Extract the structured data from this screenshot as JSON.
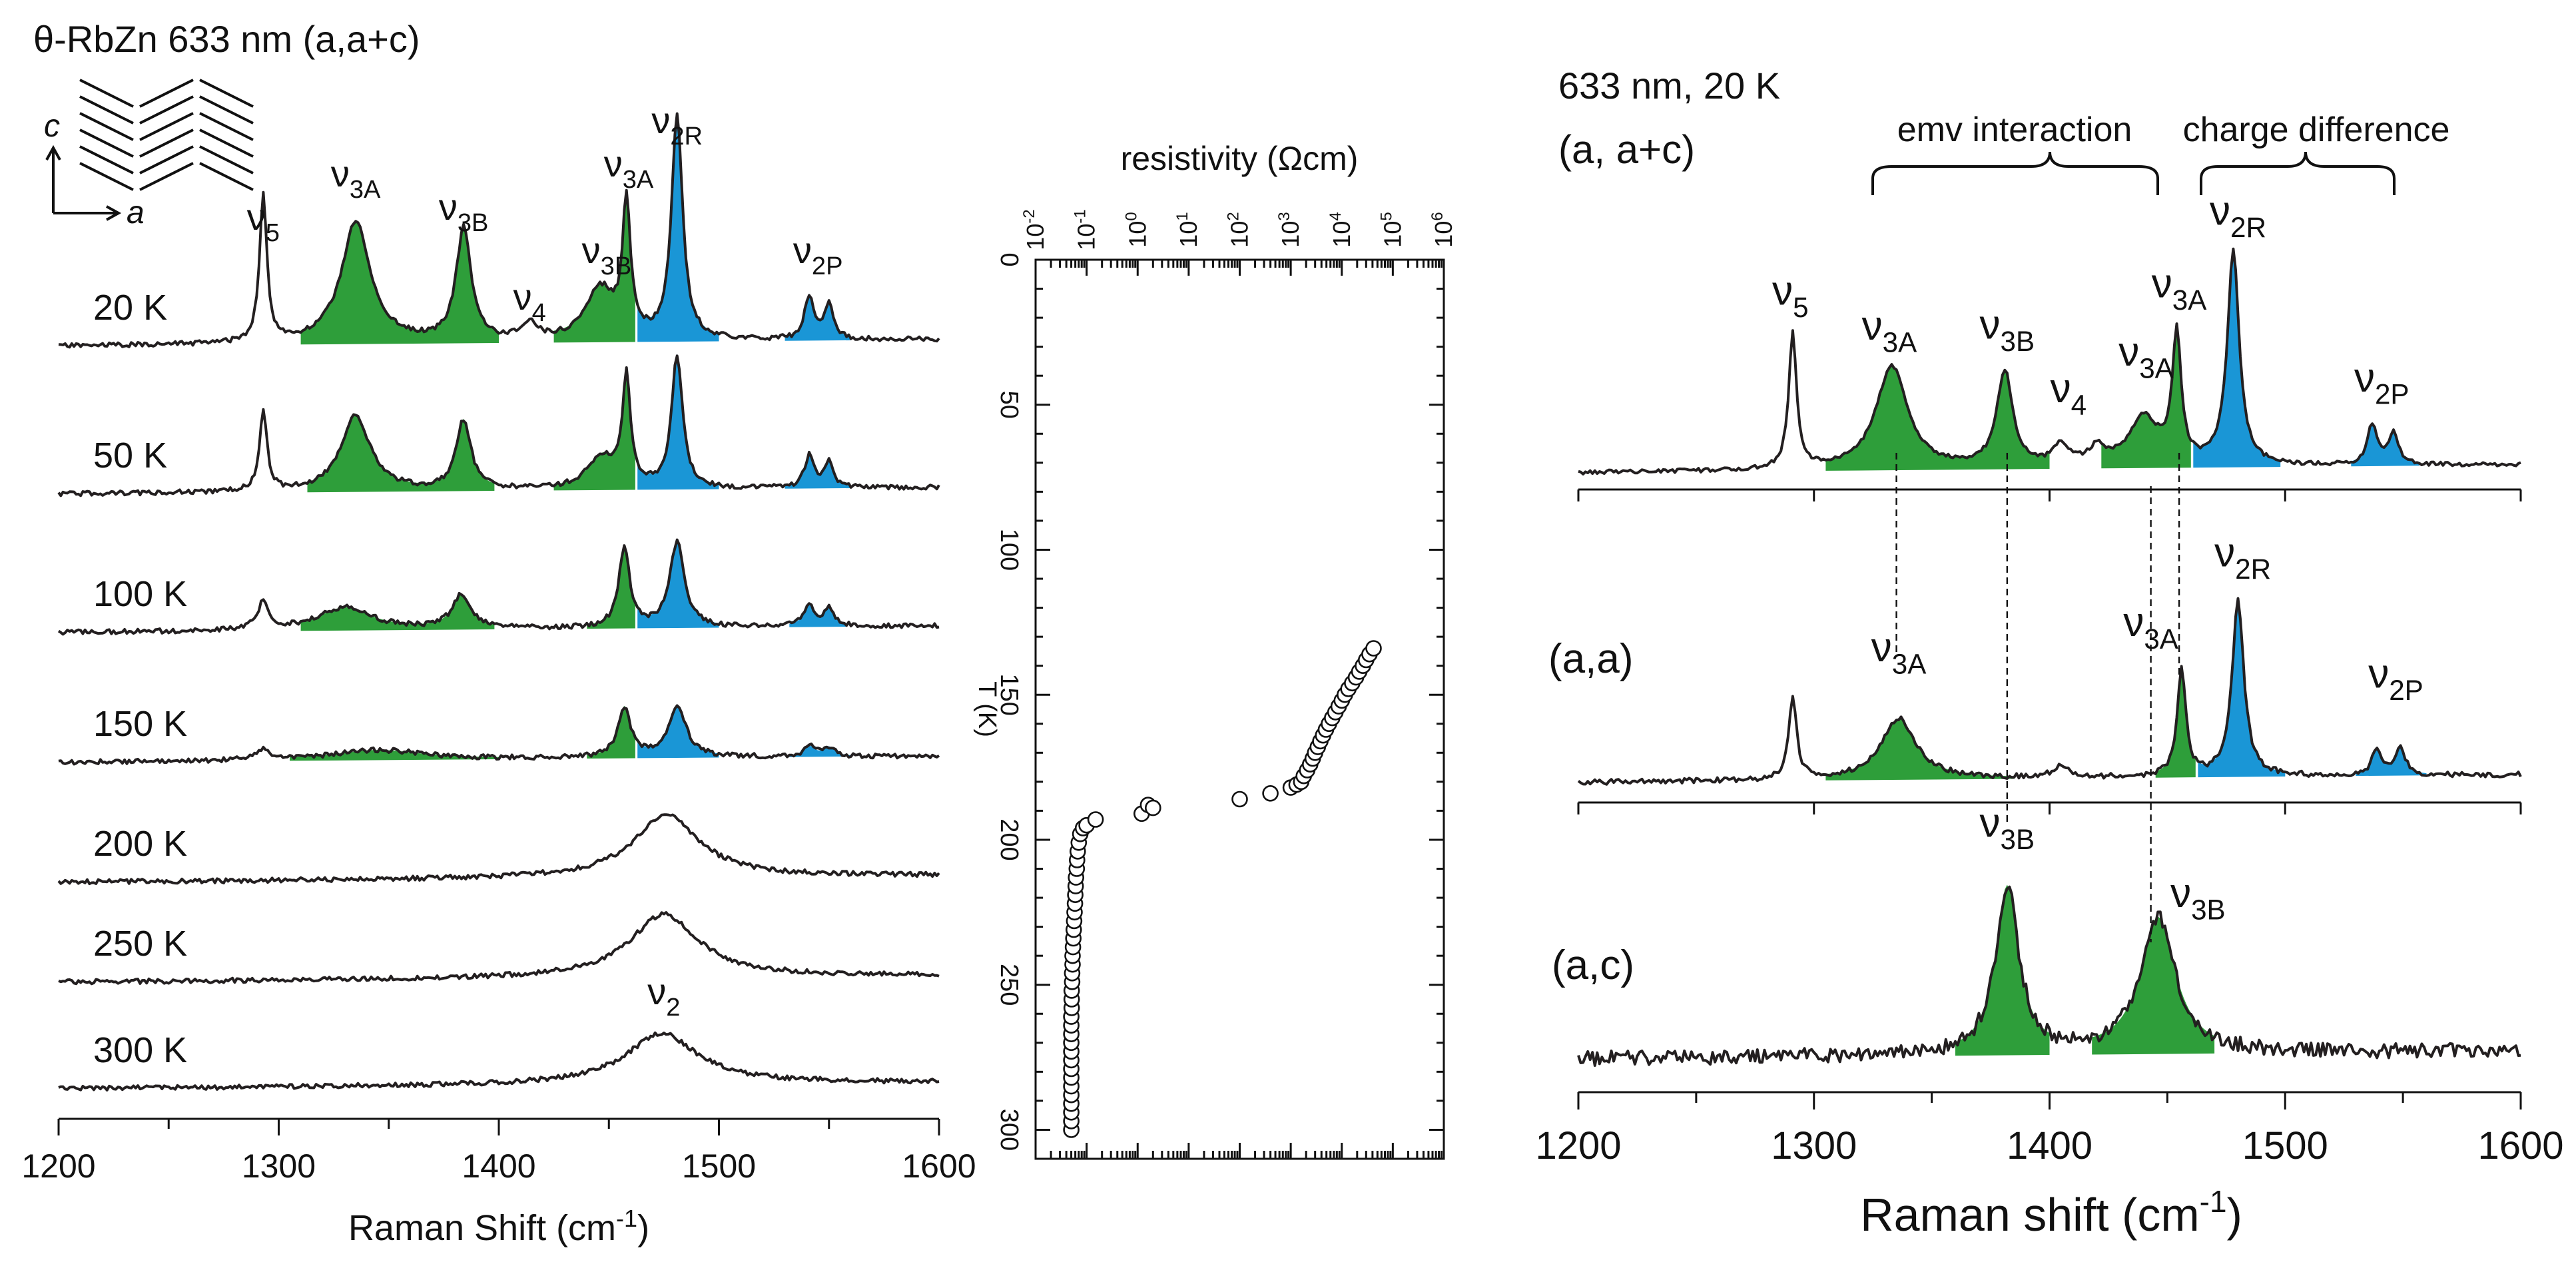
{
  "colors": {
    "green": "#2e9e3a",
    "blue": "#1a96d6",
    "line": "#231f20",
    "marker_fill": "#ffffff"
  },
  "chart_data": [
    {
      "type": "line",
      "title": "θ-RbZn 633 nm (a,a+c)",
      "xlabel": "Raman Shift (cm-1)",
      "ylabel": "",
      "xlim": [
        1200,
        1600
      ],
      "xticks": [
        "1200",
        "1300",
        "1400",
        "1500",
        "1600"
      ],
      "crystal_axes": [
        "c",
        "a"
      ],
      "peak_labels": [
        {
          "base": "ν",
          "sub": "5",
          "x": 1293,
          "y": 20
        },
        {
          "base": "ν",
          "sub": "3A",
          "x": 1335,
          "y": 20
        },
        {
          "base": "ν",
          "sub": "3B",
          "x": 1384,
          "y": 20
        },
        {
          "base": "ν",
          "sub": "4",
          "x": 1414,
          "y": 20
        },
        {
          "base": "ν",
          "sub": "3B",
          "x": 1449,
          "y": 20
        },
        {
          "base": "ν",
          "sub": "3A",
          "x": 1459,
          "y": 20
        },
        {
          "base": "ν",
          "sub": "2R",
          "x": 1481,
          "y": 20
        },
        {
          "base": "ν",
          "sub": "2P",
          "x": 1545,
          "y": 20
        },
        {
          "base": "ν",
          "sub": "2",
          "x": 1475,
          "y": 300
        }
      ],
      "series": [
        {
          "name": "20 K",
          "peaks": [
            [
              1293,
              1.7,
              2
            ],
            [
              1335,
              1.4,
              8
            ],
            [
              1384,
              1.3,
              4
            ],
            [
              1414,
              0.2,
              4
            ],
            [
              1446,
              0.6,
              8
            ],
            [
              1458,
              1.5,
              2.2
            ],
            [
              1481,
              2.6,
              3
            ],
            [
              1541,
              0.5,
              2.5
            ],
            [
              1550,
              0.4,
              2.5
            ]
          ],
          "fills": [
            {
              "color": "green",
              "from": 1310,
              "to": 1400
            },
            {
              "color": "green",
              "from": 1425,
              "to": 1462
            },
            {
              "color": "blue",
              "from": 1463,
              "to": 1500
            },
            {
              "color": "blue",
              "from": 1530,
              "to": 1560
            }
          ]
        },
        {
          "name": "50 K",
          "peaks": [
            [
              1293,
              1.3,
              2
            ],
            [
              1335,
              1.2,
              8
            ],
            [
              1384,
              1.1,
              4
            ],
            [
              1447,
              0.5,
              8
            ],
            [
              1458,
              1.7,
              2.2
            ],
            [
              1481,
              2.1,
              3
            ],
            [
              1541,
              0.5,
              2.5
            ],
            [
              1550,
              0.4,
              2.5
            ]
          ],
          "fills": [
            {
              "color": "green",
              "from": 1313,
              "to": 1398
            },
            {
              "color": "green",
              "from": 1425,
              "to": 1462
            },
            {
              "color": "blue",
              "from": 1463,
              "to": 1500
            },
            {
              "color": "blue",
              "from": 1530,
              "to": 1560
            }
          ]
        },
        {
          "name": "100 K",
          "peaks": [
            [
              1293,
              0.5,
              3
            ],
            [
              1330,
              0.4,
              15
            ],
            [
              1383,
              0.6,
              5
            ],
            [
              1457,
              1.4,
              3
            ],
            [
              1481,
              1.5,
              4
            ],
            [
              1541,
              0.35,
              3
            ],
            [
              1550,
              0.3,
              3
            ]
          ],
          "fills": [
            {
              "color": "green",
              "from": 1310,
              "to": 1398
            },
            {
              "color": "green",
              "from": 1440,
              "to": 1462
            },
            {
              "color": "blue",
              "from": 1463,
              "to": 1500
            },
            {
              "color": "blue",
              "from": 1532,
              "to": 1558
            }
          ]
        },
        {
          "name": "150 K",
          "peaks": [
            [
              1293,
              0.2,
              4
            ],
            [
              1345,
              0.2,
              25
            ],
            [
              1457,
              1.0,
              3.5
            ],
            [
              1481,
              1.0,
              5
            ],
            [
              1541,
              0.2,
              3
            ],
            [
              1550,
              0.18,
              3
            ]
          ],
          "fills": [
            {
              "color": "green",
              "from": 1305,
              "to": 1400
            },
            {
              "color": "green",
              "from": 1440,
              "to": 1462
            },
            {
              "color": "blue",
              "from": 1463,
              "to": 1500
            },
            {
              "color": "blue",
              "from": 1532,
              "to": 1560
            }
          ]
        },
        {
          "name": "200 K",
          "peaks": [
            [
              1476,
              1.0,
              18
            ]
          ],
          "fills": []
        },
        {
          "name": "250 K",
          "peaks": [
            [
              1475,
              1.0,
              19
            ]
          ],
          "fills": []
        },
        {
          "name": "300 K",
          "peaks": [
            [
              1474,
              0.8,
              20
            ]
          ],
          "fills": []
        }
      ]
    },
    {
      "type": "scatter",
      "title": "",
      "xlabel": "resistivity (Ωcm)",
      "ylabel": "T (K)",
      "x_scale": "log",
      "xlim": [
        0.01,
        1000000
      ],
      "ylim": [
        0,
        310
      ],
      "y_inverted": true,
      "yticks": [
        "0",
        "50",
        "100",
        "150",
        "200",
        "250",
        "300"
      ],
      "xticks": [
        {
          "base": "10",
          "exp": "-2"
        },
        {
          "base": "10",
          "exp": "-1"
        },
        {
          "base": "10",
          "exp": "0"
        },
        {
          "base": "10",
          "exp": "1"
        },
        {
          "base": "10",
          "exp": "2"
        },
        {
          "base": "10",
          "exp": "3"
        },
        {
          "base": "10",
          "exp": "4"
        },
        {
          "base": "10",
          "exp": "5"
        },
        {
          "base": "10",
          "exp": "6"
        }
      ],
      "points": [
        [
          0.05,
          300
        ],
        [
          0.05,
          297
        ],
        [
          0.05,
          294
        ],
        [
          0.05,
          291
        ],
        [
          0.05,
          288
        ],
        [
          0.05,
          285
        ],
        [
          0.05,
          282
        ],
        [
          0.05,
          279
        ],
        [
          0.05,
          276
        ],
        [
          0.05,
          273
        ],
        [
          0.05,
          270
        ],
        [
          0.05,
          267
        ],
        [
          0.05,
          264
        ],
        [
          0.05,
          261
        ],
        [
          0.051,
          258
        ],
        [
          0.051,
          255
        ],
        [
          0.051,
          252
        ],
        [
          0.052,
          249
        ],
        [
          0.052,
          246
        ],
        [
          0.053,
          243
        ],
        [
          0.053,
          240
        ],
        [
          0.054,
          237
        ],
        [
          0.055,
          234
        ],
        [
          0.056,
          231
        ],
        [
          0.057,
          228
        ],
        [
          0.058,
          225
        ],
        [
          0.059,
          222
        ],
        [
          0.06,
          219
        ],
        [
          0.061,
          216
        ],
        [
          0.062,
          213
        ],
        [
          0.064,
          210
        ],
        [
          0.065,
          207
        ],
        [
          0.067,
          204
        ],
        [
          0.07,
          201
        ],
        [
          0.075,
          198
        ],
        [
          0.085,
          196
        ],
        [
          0.1,
          195
        ],
        [
          0.15,
          193
        ],
        [
          1.2,
          191
        ],
        [
          1.6,
          188
        ],
        [
          2,
          189
        ],
        [
          100,
          186
        ],
        [
          400,
          184
        ],
        [
          1000,
          182
        ],
        [
          1300,
          181
        ],
        [
          1600,
          180
        ],
        [
          1800,
          178
        ],
        [
          2100,
          176
        ],
        [
          2400,
          174
        ],
        [
          2700,
          172
        ],
        [
          3000,
          170
        ],
        [
          3400,
          168
        ],
        [
          3800,
          166
        ],
        [
          4300,
          164
        ],
        [
          4900,
          162
        ],
        [
          5600,
          160
        ],
        [
          6500,
          158
        ],
        [
          7500,
          156
        ],
        [
          8700,
          154
        ],
        [
          10000,
          152
        ],
        [
          11500,
          150
        ],
        [
          13500,
          148
        ],
        [
          16000,
          146
        ],
        [
          19000,
          144
        ],
        [
          22000,
          142
        ],
        [
          26000,
          140
        ],
        [
          30000,
          138
        ],
        [
          35000,
          136
        ],
        [
          42000,
          134
        ]
      ]
    },
    {
      "type": "line",
      "title": "633 nm, 20 K",
      "xlabel": "Raman shift (cm-1)",
      "ylabel": "",
      "xlim": [
        1200,
        1600
      ],
      "xticks": [
        "1200",
        "1300",
        "1400",
        "1500",
        "1600"
      ],
      "group_labels": [
        "emv interaction",
        "charge difference"
      ],
      "dashed_lines_x": [
        1335,
        1382,
        1443,
        1455
      ],
      "panels": [
        {
          "name": "(a, a+c)",
          "peaks": [
            [
              1291,
              1.7,
              2
            ],
            [
              1333,
              1.3,
              8
            ],
            [
              1381,
              1.2,
              4
            ],
            [
              1405,
              0.25,
              4
            ],
            [
              1420,
              0.2,
              4
            ],
            [
              1440,
              0.6,
              8
            ],
            [
              1454,
              1.6,
              2.2
            ],
            [
              1478,
              2.7,
              3
            ],
            [
              1537,
              0.5,
              2.5
            ],
            [
              1546,
              0.4,
              2.5
            ]
          ],
          "fills": [
            {
              "color": "green",
              "from": 1305,
              "to": 1400
            },
            {
              "color": "green",
              "from": 1422,
              "to": 1460
            },
            {
              "color": "blue",
              "from": 1461,
              "to": 1498
            },
            {
              "color": "blue",
              "from": 1528,
              "to": 1557
            }
          ],
          "labels": [
            {
              "base": "ν",
              "sub": "5",
              "x": 1290,
              "y": 1.75
            },
            {
              "base": "ν",
              "sub": "3A",
              "x": 1332,
              "y": 1.3
            },
            {
              "base": "ν",
              "sub": "3B",
              "x": 1382,
              "y": 1.3
            },
            {
              "base": "ν",
              "sub": "4",
              "x": 1408,
              "y": 0.5
            },
            {
              "base": "ν",
              "sub": "3A",
              "x": 1441,
              "y": 0.95
            },
            {
              "base": "ν",
              "sub": "3A",
              "x": 1455,
              "y": 1.8
            },
            {
              "base": "ν",
              "sub": "2R",
              "x": 1480,
              "y": 2.7
            },
            {
              "base": "ν",
              "sub": "2P",
              "x": 1541,
              "y": 0.6
            }
          ]
        },
        {
          "name": "(a,a)",
          "peaks": [
            [
              1291,
              1.1,
              2
            ],
            [
              1336,
              0.8,
              9
            ],
            [
              1405,
              0.15,
              4
            ],
            [
              1456,
              1.4,
              2.2
            ],
            [
              1480,
              2.3,
              3
            ],
            [
              1539,
              0.35,
              2.5
            ],
            [
              1549,
              0.35,
              2.5
            ]
          ],
          "fills": [
            {
              "color": "green",
              "from": 1305,
              "to": 1385
            },
            {
              "color": "green",
              "from": 1445,
              "to": 1462
            },
            {
              "color": "blue",
              "from": 1463,
              "to": 1500
            },
            {
              "color": "blue",
              "from": 1530,
              "to": 1560
            }
          ],
          "labels": [
            {
              "base": "ν",
              "sub": "3A",
              "x": 1336,
              "y": 1.2
            },
            {
              "base": "ν",
              "sub": "3A",
              "x": 1443,
              "y": 1.5
            },
            {
              "base": "ν",
              "sub": "2R",
              "x": 1482,
              "y": 2.4
            },
            {
              "base": "ν",
              "sub": "2P",
              "x": 1547,
              "y": 0.8
            }
          ]
        },
        {
          "name": "(a,c)",
          "peaks": [
            [
              1382,
              2.1,
              6
            ],
            [
              1446,
              1.7,
              9
            ]
          ],
          "fills": [
            {
              "color": "green",
              "from": 1360,
              "to": 1400
            },
            {
              "color": "green",
              "from": 1418,
              "to": 1470
            }
          ],
          "labels": [
            {
              "base": "ν",
              "sub": "3B",
              "x": 1382,
              "y": 2.4
            },
            {
              "base": "ν",
              "sub": "3B",
              "x": 1463,
              "y": 1.5
            }
          ]
        }
      ]
    }
  ]
}
